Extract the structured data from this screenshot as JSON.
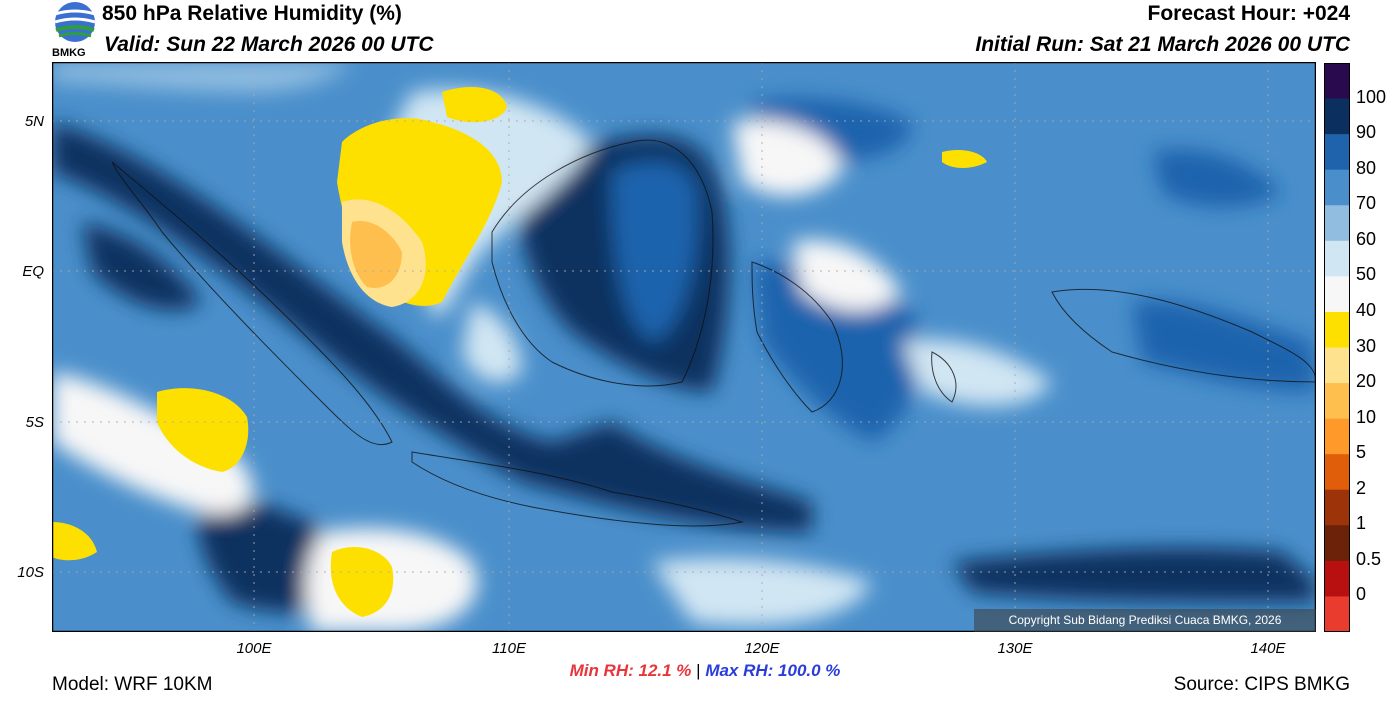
{
  "header": {
    "title": "850 hPa Relative Humidity (%)",
    "valid": "Valid: Sun 22 March 2026 00 UTC",
    "forecast_hour": "Forecast Hour: +024",
    "initial_run": "Initial Run: Sat 21 March 2026 00 UTC",
    "logo_text": "BMKG"
  },
  "map": {
    "copyright": "Copyright Sub Bidang Prediksi Cuaca BMKG, 2026",
    "lat_labels": [
      "5N",
      "EQ",
      "5S",
      "10S"
    ],
    "lon_labels": [
      "100E",
      "110E",
      "120E",
      "130E",
      "140E"
    ]
  },
  "colorbar": {
    "labels": [
      "100",
      "90",
      "80",
      "70",
      "60",
      "50",
      "40",
      "30",
      "20",
      "10",
      "5",
      "2",
      "1",
      "0.5",
      "0"
    ],
    "colors": [
      "#2a0a4e",
      "#0b3060",
      "#1f63ad",
      "#4a8fcb",
      "#90bde0",
      "#d1e6f3",
      "#f7f7f7",
      "#fde000",
      "#ffe28e",
      "#ffbf4f",
      "#ff9a2a",
      "#e05d0a",
      "#9c3309",
      "#6b2208",
      "#b80f10",
      "#ea3b2f"
    ]
  },
  "footer": {
    "model": "Model: WRF 10KM",
    "min_rh": "Min RH:  12.1 %",
    "separator": "|",
    "max_rh": "Max RH: 100.0 %",
    "source": "Source: CIPS BMKG"
  }
}
